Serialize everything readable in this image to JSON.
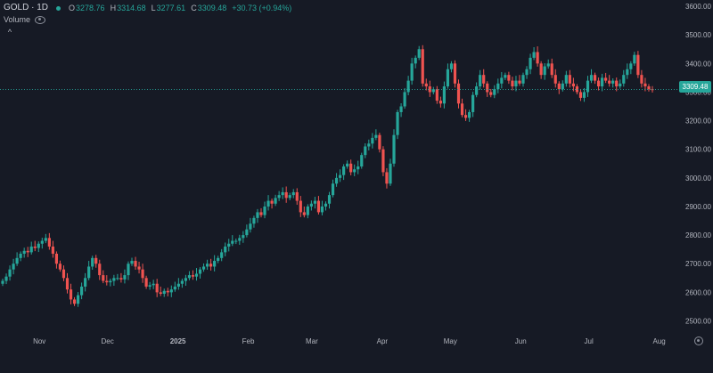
{
  "legend": {
    "symbol": "GOLD · 1D",
    "o_label": "O",
    "o_value": "3278.76",
    "h_label": "H",
    "h_value": "3314.68",
    "l_label": "L",
    "l_value": "3277.61",
    "c_label": "C",
    "c_value": "3309.48",
    "change": "+30.73 (+0.94%)",
    "volume_label": "Volume",
    "collapse_icon": "chevron-up-icon",
    "visibility_icon": "eye-icon"
  },
  "last_price_label": "3309.48",
  "colors": {
    "background": "#161a25",
    "up": "#26a69a",
    "down": "#ef5350",
    "text": "#b2b5be"
  },
  "chart_data": {
    "type": "candlestick",
    "title": "GOLD · 1D",
    "y_ticks": [
      2500,
      2600,
      2700,
      2800,
      2900,
      3000,
      3100,
      3200,
      3300,
      3400,
      3500,
      3600
    ],
    "y_tick_labels": [
      "2500.00",
      "2600.00",
      "2700.00",
      "2800.00",
      "2900.00",
      "3000.00",
      "3100.00",
      "3200.00",
      "3300.00",
      "3400.00",
      "3500.00",
      "3600.00"
    ],
    "ylim": [
      2450,
      3600
    ],
    "x_labels": [
      "Nov",
      "Dec",
      "2025",
      "Feb",
      "Mar",
      "Apr",
      "May",
      "Jun",
      "Jul",
      "Aug"
    ],
    "x_label_dates": [
      "2024-11-01",
      "2024-12-01",
      "2025-01-01",
      "2025-02-01",
      "2025-03-01",
      "2025-04-01",
      "2025-05-01",
      "2025-06-01",
      "2025-07-01",
      "2025-08-01"
    ],
    "last_price": 3309.48,
    "grid": false,
    "closes": [
      2640,
      2655,
      2680,
      2700,
      2720,
      2735,
      2745,
      2740,
      2760,
      2755,
      2770,
      2780,
      2790,
      2760,
      2735,
      2700,
      2680,
      2650,
      2610,
      2575,
      2560,
      2590,
      2620,
      2650,
      2690,
      2720,
      2700,
      2660,
      2640,
      2635,
      2640,
      2650,
      2650,
      2645,
      2660,
      2700,
      2710,
      2690,
      2680,
      2650,
      2620,
      2625,
      2630,
      2600,
      2595,
      2605,
      2600,
      2610,
      2620,
      2630,
      2640,
      2650,
      2660,
      2655,
      2665,
      2680,
      2690,
      2700,
      2690,
      2710,
      2720,
      2740,
      2760,
      2770,
      2780,
      2780,
      2790,
      2800,
      2820,
      2840,
      2860,
      2880,
      2870,
      2900,
      2920,
      2910,
      2930,
      2940,
      2950,
      2930,
      2940,
      2950,
      2920,
      2880,
      2870,
      2900,
      2910,
      2920,
      2880,
      2900,
      2910,
      2940,
      2980,
      3000,
      3010,
      3040,
      3050,
      3020,
      3030,
      3040,
      3080,
      3110,
      3120,
      3140,
      3150,
      3100,
      3020,
      2980,
      3050,
      3150,
      3230,
      3250,
      3300,
      3340,
      3400,
      3420,
      3450,
      3330,
      3320,
      3300,
      3310,
      3270,
      3260,
      3320,
      3380,
      3400,
      3330,
      3260,
      3220,
      3210,
      3230,
      3290,
      3320,
      3360,
      3330,
      3300,
      3290,
      3310,
      3330,
      3350,
      3360,
      3340,
      3320,
      3340,
      3330,
      3360,
      3380,
      3420,
      3440,
      3400,
      3360,
      3390,
      3400,
      3360,
      3330,
      3310,
      3330,
      3360,
      3330,
      3320,
      3300,
      3280,
      3300,
      3340,
      3360,
      3340,
      3320,
      3350,
      3340,
      3330,
      3340,
      3320,
      3330,
      3360,
      3380,
      3400,
      3430,
      3360,
      3330,
      3320,
      3310,
      3309.48
    ]
  }
}
